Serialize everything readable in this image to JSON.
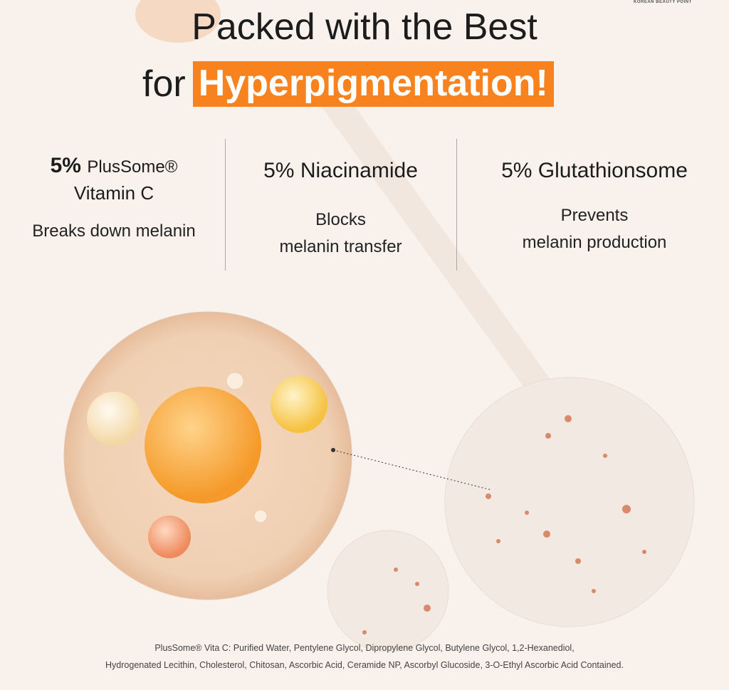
{
  "brand": "KOREAN BEAUTY POINT",
  "headline": {
    "line1": "Packed with the Best",
    "line2_prefix": "for",
    "line2_highlight": "Hyperpigmentation!"
  },
  "accent_color": "#f7821e",
  "ingredients": [
    {
      "percent": "5%",
      "name": "PlusSome®",
      "name2": "Vitamin C",
      "desc": "Breaks down melanin"
    },
    {
      "percent": "5%",
      "name": "Niacinamide",
      "desc1": "Blocks",
      "desc2": "melanin transfer"
    },
    {
      "percent": "5%",
      "name": "Glutathionsome",
      "desc1": "Prevents",
      "desc2": "melanin production"
    }
  ],
  "footnote": {
    "line1": "PlusSome® Vita C: Purified Water, Pentylene Glycol, Dipropylene Glycol, Butylene Glycol, 1,2-Hexanediol,",
    "line2": "Hydrogenated Lecithin, Cholesterol, Chitosan, Ascorbic Acid, Ceramide NP, Ascorbyl Glucoside, 3-O-Ethyl Ascorbic Acid Contained."
  }
}
